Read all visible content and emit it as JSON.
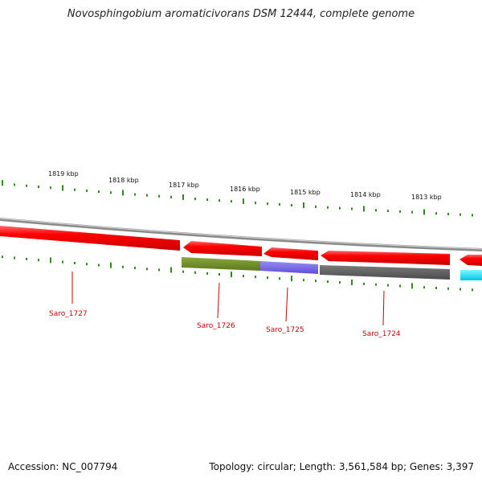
{
  "header": {
    "title": "Novosphingobium aromaticivorans DSM 12444, complete genome"
  },
  "footer": {
    "accession": "Accession: NC_007794",
    "summary": "Topology: circular; Length: 3,561,584 bp; Genes: 3,397"
  },
  "colors": {
    "backbone": "#8a8a8a",
    "tick": "#2e8b1e",
    "label": "#cc0000",
    "forward_gene": "#ff0000",
    "cyan_gene": "#00e5ff",
    "olive_gene": "#6b8e23",
    "purple_gene": "#7b68ee",
    "grey_gene": "#606060"
  },
  "scale": {
    "unit": "kbp",
    "ticks": [
      {
        "label": "1819 kbp",
        "kbp": 1819
      },
      {
        "label": "1818 kbp",
        "kbp": 1818
      },
      {
        "label": "1817 kbp",
        "kbp": 1817
      },
      {
        "label": "1816 kbp",
        "kbp": 1816
      },
      {
        "label": "1815 kbp",
        "kbp": 1815
      },
      {
        "label": "1814 kbp",
        "kbp": 1814
      },
      {
        "label": "1813 kbp",
        "kbp": 1813
      }
    ]
  },
  "genes": {
    "labeled": [
      {
        "name": "Saro_1727",
        "track": "outer",
        "color": "#ff0000"
      },
      {
        "name": "Saro_1726",
        "track": "inner",
        "color": "#6b8e23"
      },
      {
        "name": "Saro_1725",
        "track": "inner",
        "color": "#7b68ee"
      },
      {
        "name": "Saro_1724",
        "track": "inner",
        "color": "#606060"
      }
    ]
  }
}
